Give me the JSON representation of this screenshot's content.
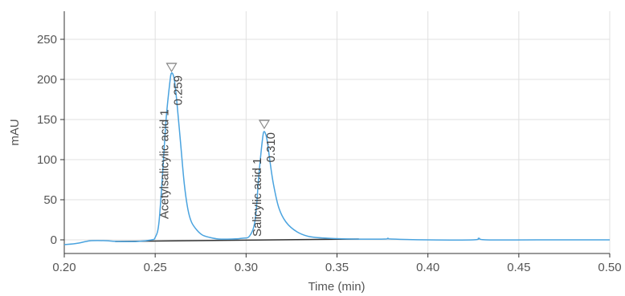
{
  "chart_data": {
    "type": "line",
    "title": "",
    "xlabel": "Time (min)",
    "ylabel": "mAU",
    "xlim": [
      0.2,
      0.5
    ],
    "ylim": [
      -17,
      285
    ],
    "x_ticks": [
      "0.20",
      "0.25",
      "0.30",
      "0.35",
      "0.40",
      "0.45",
      "0.50"
    ],
    "y_ticks": [
      "0",
      "50",
      "100",
      "150",
      "200",
      "250"
    ],
    "grid": true,
    "legend": "none",
    "colors": {
      "signal": "#4aa3df",
      "baseline": "#333333",
      "grid": "#e0e0e0",
      "axis": "#333333",
      "marker": "#888888"
    },
    "series": [
      {
        "x": [
          0.2,
          0.205,
          0.208,
          0.212,
          0.215,
          0.222,
          0.23,
          0.24,
          0.248,
          0.25,
          0.252,
          0.254,
          0.256,
          0.258,
          0.259,
          0.2605,
          0.262,
          0.264,
          0.266,
          0.268,
          0.27,
          0.273,
          0.276,
          0.28,
          0.285,
          0.292,
          0.298,
          0.302,
          0.305,
          0.307,
          0.309,
          0.31,
          0.3115,
          0.313,
          0.315,
          0.318,
          0.322,
          0.328,
          0.335,
          0.345,
          0.36,
          0.376,
          0.378,
          0.38,
          0.4,
          0.425,
          0.428,
          0.432,
          0.46,
          0.5
        ],
        "y": [
          -6,
          -5,
          -4,
          -2,
          -1,
          -1,
          -2,
          -2,
          0,
          3,
          20,
          80,
          150,
          195,
          208,
          200,
          170,
          120,
          70,
          38,
          22,
          12,
          6,
          3,
          1,
          1,
          2,
          5,
          25,
          80,
          125,
          135,
          125,
          100,
          70,
          40,
          22,
          10,
          4,
          2,
          1,
          1,
          2,
          1,
          0,
          0,
          2,
          0,
          0,
          0
        ]
      }
    ],
    "baseline": {
      "x": [
        0.228,
        0.362
      ],
      "y": [
        -2,
        1
      ]
    },
    "peaks": [
      {
        "name": "Acetylsalicylic acid 1",
        "time": "0.259",
        "x": 0.259,
        "marker_y": 215
      },
      {
        "name": "Salicylic acid 1",
        "time": "0.310",
        "x": 0.31,
        "marker_y": 144
      }
    ]
  }
}
